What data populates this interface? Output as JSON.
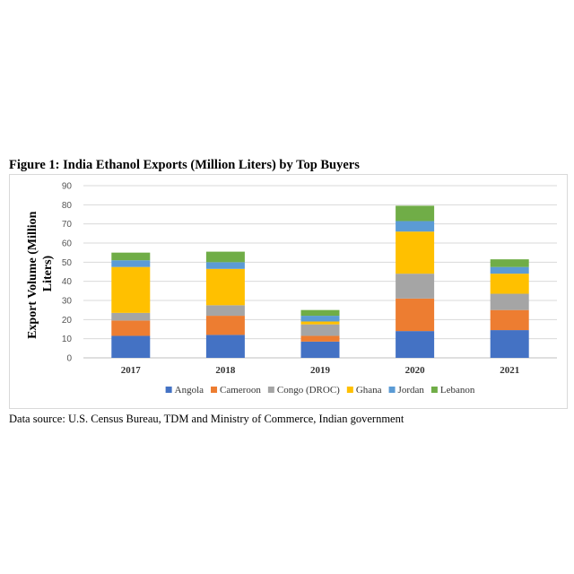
{
  "figure_title": "Figure 1: India Ethanol Exports (Million Liters) by Top Buyers",
  "source_note": "Data source: U.S. Census Bureau, TDM and Ministry of Commerce, Indian government",
  "chart_data": {
    "type": "bar",
    "stacked": true,
    "title": "",
    "xlabel": "",
    "ylabel": [
      "Export Volume (Million",
      "Liters)"
    ],
    "ylim": [
      0,
      90
    ],
    "yticks": [
      0,
      10,
      20,
      30,
      40,
      50,
      60,
      70,
      80,
      90
    ],
    "grid": true,
    "legend_position": "bottom",
    "categories": [
      "2017",
      "2018",
      "2019",
      "2020",
      "2021"
    ],
    "series": [
      {
        "name": "Angola",
        "color": "#4472C4",
        "values": [
          11.5,
          12,
          8.5,
          14,
          14.5
        ]
      },
      {
        "name": "Cameroon",
        "color": "#ED7D31",
        "values": [
          8,
          10,
          3,
          17,
          10.5
        ]
      },
      {
        "name": "Congo (DROC)",
        "color": "#A5A5A5",
        "values": [
          4,
          5.5,
          6,
          13,
          8.5
        ]
      },
      {
        "name": "Ghana",
        "color": "#FFC000",
        "values": [
          24,
          19,
          1.5,
          22,
          10.5
        ]
      },
      {
        "name": "Jordan",
        "color": "#5B9BD5",
        "values": [
          3.5,
          3.5,
          3,
          5.5,
          3.5
        ]
      },
      {
        "name": "Lebanon",
        "color": "#70AD47",
        "values": [
          4,
          5.5,
          3,
          8,
          4
        ]
      }
    ]
  }
}
